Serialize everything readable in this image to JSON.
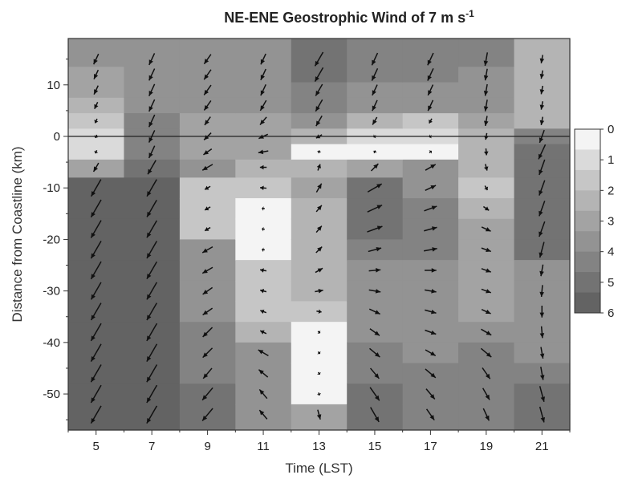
{
  "chart_data": {
    "type": "heatmap",
    "title": "NE-ENE Geostrophic Wind of 7 m s",
    "title_superscript": "-1",
    "xlabel": "Time (LST)",
    "ylabel": "Distance from Coastline (km)",
    "x_ticks": [
      "5",
      "7",
      "9",
      "11",
      "13",
      "15",
      "17",
      "19",
      "21"
    ],
    "y_ticks": [
      "10",
      "0",
      "-10",
      "-20",
      "-30",
      "-40",
      "-50"
    ],
    "xlim": [
      4,
      22
    ],
    "ylim": [
      -57,
      19
    ],
    "coastline_y": 0,
    "colorbar": {
      "ticks": [
        "0",
        "1",
        "2",
        "3",
        "4",
        "5",
        "6"
      ],
      "range": [
        0,
        6
      ],
      "colors": [
        "#f4f4f4",
        "#dadada",
        "#c6c6c6",
        "#b4b4b4",
        "#a3a3a3",
        "#939393",
        "#838383",
        "#737373",
        "#636363"
      ]
    },
    "times": [
      5,
      7,
      9,
      11,
      13,
      15,
      17,
      19,
      21
    ],
    "distances": [
      15,
      12,
      9,
      6,
      3,
      0,
      -3,
      -6,
      -10,
      -14,
      -18,
      -22,
      -26,
      -30,
      -34,
      -38,
      -42,
      -46,
      -50,
      -54
    ],
    "wind_speed": [
      [
        3.4,
        3.0,
        2.9,
        2.2,
        1.4,
        1.0,
        1.0,
        3.0,
        5.8,
        6.0,
        6.0,
        6.0,
        6.0,
        5.9,
        5.9,
        6.0,
        6.0,
        6.0,
        6.0,
        6.0
      ],
      [
        3.8,
        3.9,
        3.9,
        3.9,
        4.0,
        4.0,
        4.0,
        4.8,
        5.8,
        5.8,
        5.9,
        5.9,
        5.9,
        5.9,
        5.9,
        6.0,
        6.0,
        6.0,
        6.0,
        6.0
      ],
      [
        3.5,
        3.6,
        3.6,
        3.5,
        3.0,
        3.0,
        3.0,
        3.5,
        1.9,
        1.9,
        1.9,
        3.5,
        3.5,
        3.5,
        3.5,
        4.0,
        4.0,
        4.0,
        4.8,
        4.8
      ],
      [
        3.5,
        3.6,
        3.6,
        3.5,
        3.0,
        3.0,
        3.0,
        2.0,
        1.9,
        0.0,
        0.0,
        0.0,
        1.9,
        1.9,
        1.9,
        2.0,
        3.5,
        3.5,
        3.5,
        3.5
      ],
      [
        4.8,
        4.8,
        4.0,
        4.0,
        3.5,
        2.0,
        0.0,
        2.0,
        3.0,
        2.5,
        2.5,
        2.5,
        2.5,
        2.5,
        1.5,
        0.0,
        0.0,
        0.0,
        0.0,
        3.0
      ],
      [
        4.0,
        4.0,
        3.5,
        3.5,
        2.6,
        0.7,
        0.3,
        3.0,
        4.8,
        4.8,
        4.8,
        4.0,
        3.5,
        3.5,
        3.5,
        3.5,
        4.0,
        4.0,
        4.8,
        5.0
      ],
      [
        4.0,
        4.0,
        3.5,
        3.5,
        1.6,
        0.7,
        0.3,
        3.5,
        3.5,
        4.0,
        4.0,
        4.0,
        3.5,
        3.5,
        3.5,
        3.5,
        3.5,
        4.0,
        4.0,
        4.0
      ],
      [
        4.0,
        3.5,
        3.5,
        3.5,
        3.0,
        2.0,
        2.0,
        2.0,
        1.5,
        2.0,
        3.0,
        3.0,
        3.0,
        3.0,
        3.0,
        3.5,
        4.0,
        4.0,
        4.0,
        4.0
      ],
      [
        2.5,
        2.5,
        2.5,
        2.5,
        2.5,
        4.0,
        4.8,
        4.8,
        4.8,
        4.8,
        4.8,
        4.8,
        3.5,
        3.5,
        3.5,
        3.5,
        3.5,
        4.0,
        4.8,
        4.8
      ]
    ],
    "wind_direction_deg": [
      [
        205,
        205,
        205,
        205,
        205,
        205,
        205,
        210,
        210,
        210,
        210,
        210,
        210,
        210,
        210,
        210,
        210,
        210,
        210,
        210
      ],
      [
        205,
        205,
        205,
        205,
        205,
        205,
        205,
        210,
        210,
        210,
        210,
        210,
        210,
        210,
        210,
        210,
        210,
        210,
        210,
        210
      ],
      [
        215,
        215,
        215,
        215,
        215,
        225,
        235,
        240,
        240,
        240,
        240,
        240,
        240,
        235,
        235,
        225,
        225,
        220,
        220,
        220
      ],
      [
        205,
        205,
        205,
        210,
        220,
        245,
        260,
        270,
        275,
        275,
        275,
        275,
        280,
        285,
        290,
        295,
        300,
        310,
        320,
        320
      ],
      [
        210,
        210,
        210,
        210,
        210,
        240,
        10,
        20,
        30,
        40,
        40,
        45,
        60,
        80,
        100,
        130,
        140,
        150,
        160,
        165
      ],
      [
        205,
        205,
        205,
        205,
        210,
        240,
        30,
        45,
        60,
        65,
        70,
        75,
        85,
        100,
        115,
        125,
        130,
        140,
        145,
        150
      ],
      [
        205,
        205,
        205,
        205,
        210,
        240,
        50,
        60,
        65,
        70,
        75,
        80,
        90,
        100,
        105,
        110,
        120,
        130,
        140,
        145
      ],
      [
        190,
        190,
        190,
        190,
        190,
        190,
        175,
        165,
        150,
        125,
        115,
        110,
        110,
        110,
        115,
        120,
        130,
        145,
        150,
        155
      ],
      [
        190,
        190,
        190,
        190,
        190,
        200,
        205,
        200,
        200,
        200,
        200,
        195,
        190,
        185,
        180,
        175,
        170,
        170,
        165,
        165
      ]
    ]
  }
}
